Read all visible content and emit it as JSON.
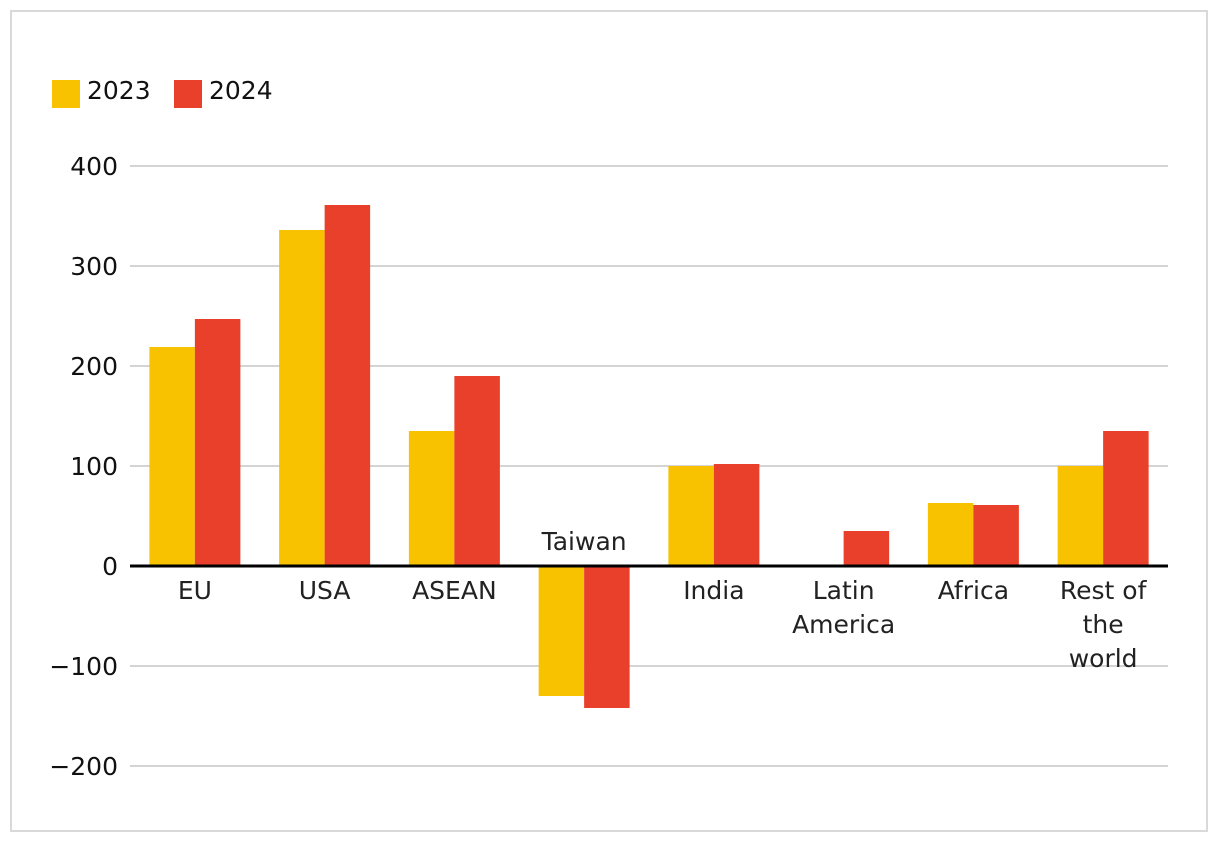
{
  "chart_data": {
    "type": "bar",
    "categories": [
      [
        "EU"
      ],
      [
        "USA"
      ],
      [
        "ASEAN"
      ],
      [
        "Taiwan"
      ],
      [
        "India"
      ],
      [
        "Latin",
        "America"
      ],
      [
        "Africa"
      ],
      [
        "Rest of",
        "the",
        "world"
      ]
    ],
    "series": [
      {
        "name": "2023",
        "color": "#f8c200",
        "values": [
          219,
          336,
          135,
          -130,
          100,
          0,
          63,
          100
        ]
      },
      {
        "name": "2024",
        "color": "#e8402b",
        "values": [
          247,
          361,
          190,
          -142,
          102,
          35,
          61,
          135
        ]
      }
    ],
    "yticks": [
      400,
      300,
      200,
      100,
      0,
      -100,
      -200
    ],
    "ytick_labels": [
      "400",
      "300",
      "200",
      "100",
      "0",
      "−100",
      "−200"
    ],
    "ylim": [
      -200,
      400
    ],
    "grid": true,
    "legend_position": "top-left"
  }
}
